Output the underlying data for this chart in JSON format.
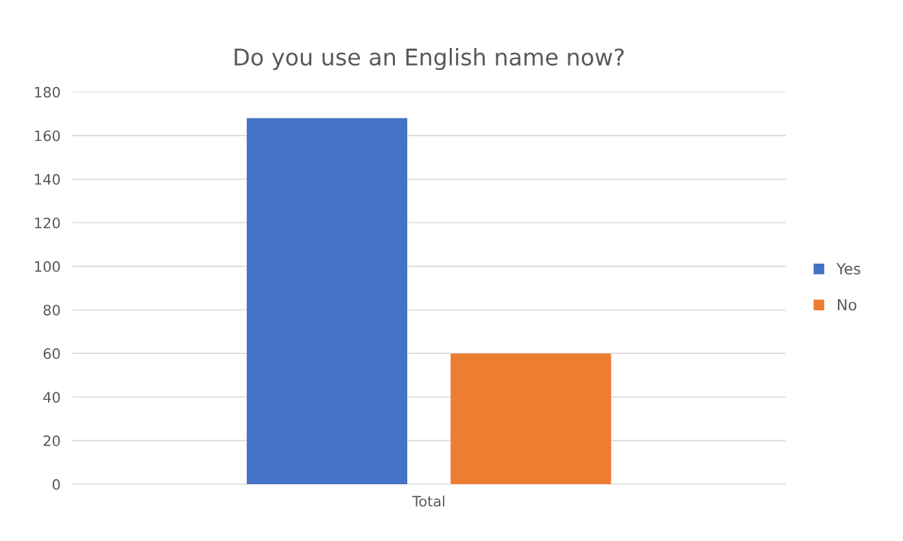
{
  "chart_data": {
    "type": "bar",
    "title": "Do you use an English name now?",
    "categories": [
      "Total"
    ],
    "series": [
      {
        "name": "Yes",
        "color": "#4472c4",
        "values": [
          168
        ]
      },
      {
        "name": "No",
        "color": "#ed7d31",
        "values": [
          60
        ]
      }
    ],
    "ylim": [
      0,
      180
    ],
    "yticks": [
      0,
      20,
      40,
      60,
      80,
      100,
      120,
      140,
      160,
      180
    ],
    "grid": "y",
    "legend": "right"
  }
}
